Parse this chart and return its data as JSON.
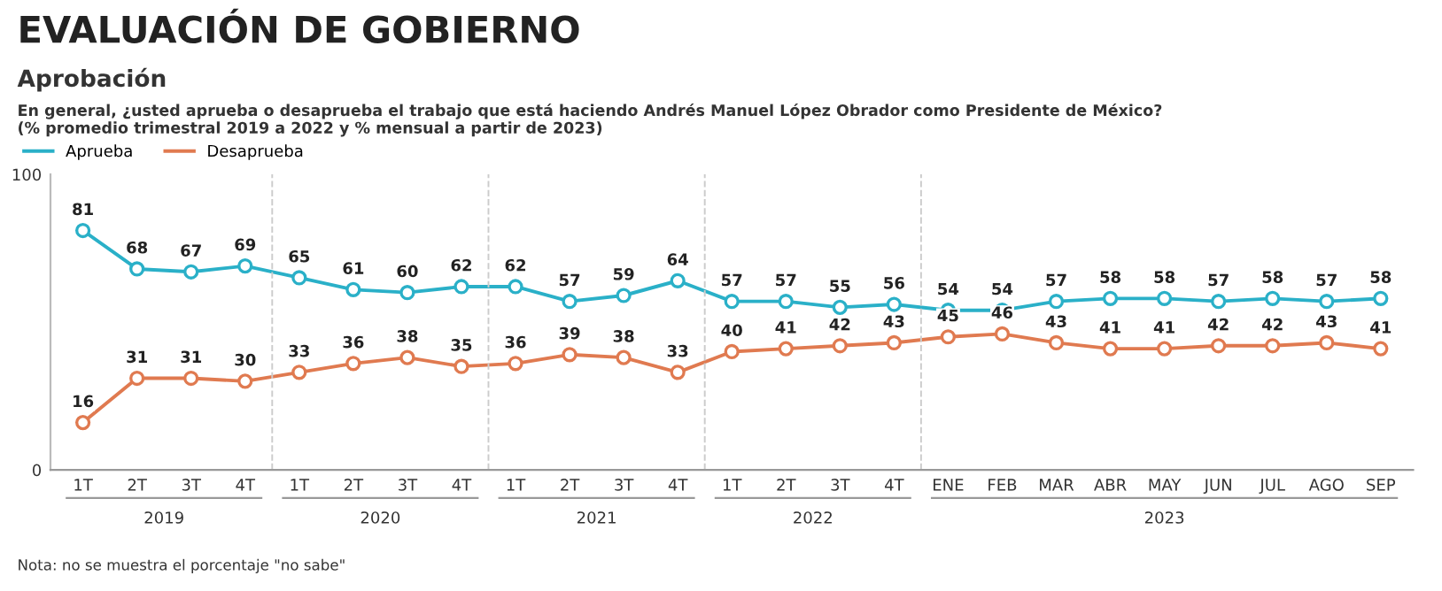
{
  "chart_data": {
    "type": "line",
    "title": "EVALUACIÓN DE GOBIERNO",
    "subtitle": "Aprobación",
    "categories": [
      "1T",
      "2T",
      "3T",
      "4T",
      "1T",
      "2T",
      "3T",
      "4T",
      "1T",
      "2T",
      "3T",
      "4T",
      "1T",
      "2T",
      "3T",
      "4T",
      "ENE",
      "FEB",
      "MAR",
      "ABR",
      "MAY",
      "JUN",
      "JUL",
      "AGO",
      "SEP"
    ],
    "series": [
      {
        "name": "Aprueba",
        "color": "#2ab0c8",
        "values": [
          81,
          68,
          67,
          69,
          65,
          61,
          60,
          62,
          62,
          57,
          59,
          64,
          57,
          57,
          55,
          56,
          54,
          54,
          57,
          58,
          58,
          57,
          58,
          57,
          58
        ]
      },
      {
        "name": "Desaprueba",
        "color": "#e07a50",
        "values": [
          16,
          31,
          31,
          30,
          33,
          36,
          38,
          35,
          36,
          39,
          38,
          33,
          40,
          41,
          42,
          43,
          45,
          46,
          43,
          41,
          41,
          42,
          42,
          43,
          41
        ]
      }
    ],
    "ylim": [
      0,
      100
    ],
    "yticks": [
      0,
      100
    ],
    "grid": false,
    "legend": "top left",
    "marker": "circle",
    "line_style": "solid",
    "data_labels": true,
    "annotations": [
      "En general, ¿usted aprueba o desaprueba el trabajo que está haciendo Andrés Manuel López Obrador como Presidente de México?\n(% promedio trimestral 2019 a 2022 y % mensual a partir de 2023)",
      "Nota: no se muestra el porcentaje \"no sabe\"",
      "2019",
      "2020",
      "2021",
      "2022",
      "2023"
    ]
  }
}
